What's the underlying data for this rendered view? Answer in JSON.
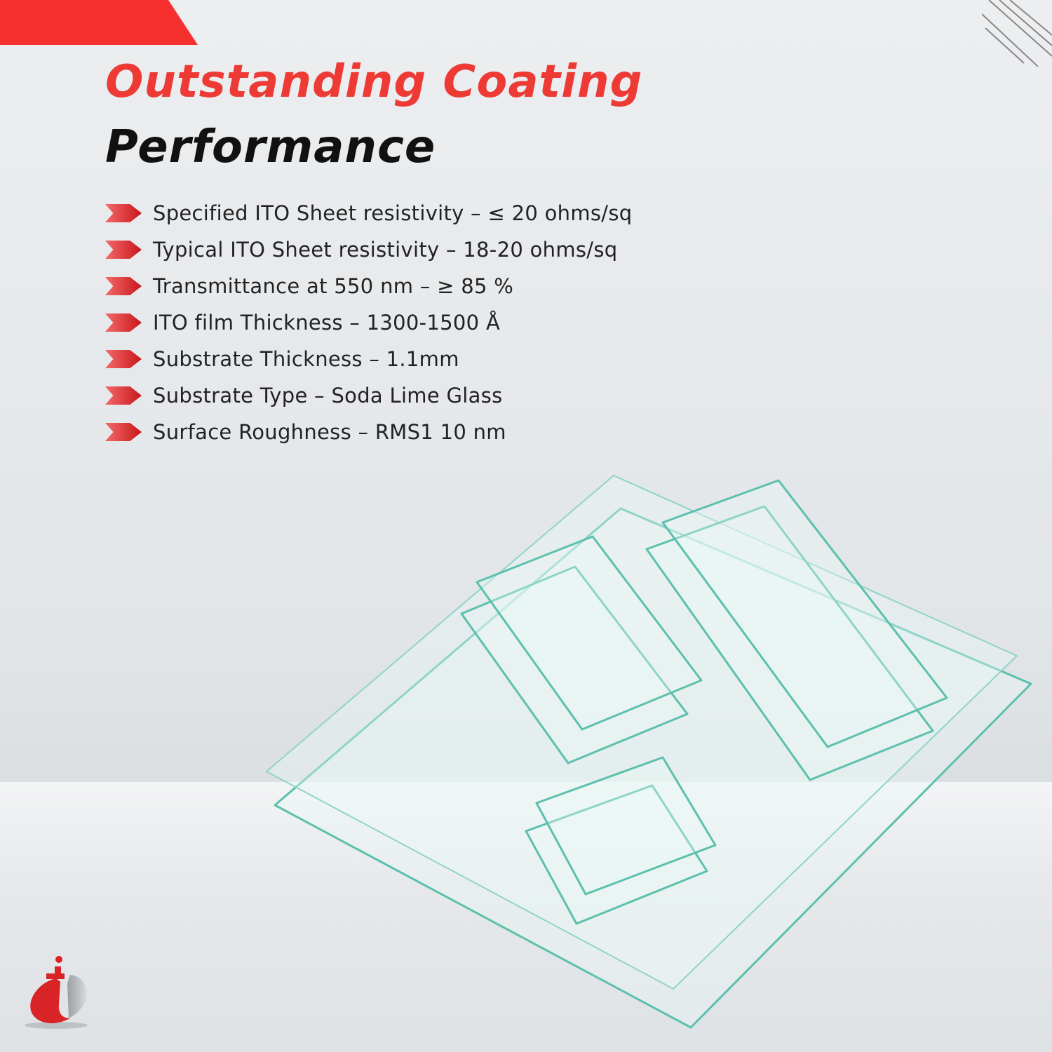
{
  "header": {
    "title_line1": "Outstanding Coating",
    "title_line2": "Performance"
  },
  "colors": {
    "accent": "#ee3a35",
    "glass_edge": "#4fb8a6",
    "text": "#222222"
  },
  "specs": [
    {
      "icon": "chevron-right-icon",
      "text": "Specified ITO Sheet resistivity – ≤ 20 ohms/sq"
    },
    {
      "icon": "chevron-right-icon",
      "text": "Typical ITO Sheet resistivity – 18-20 ohms/sq"
    },
    {
      "icon": "chevron-right-icon",
      "text": "Transmittance at 550 nm – ≥ 85 %"
    },
    {
      "icon": "chevron-right-icon",
      "text": "ITO film Thickness – 1300-1500 Å"
    },
    {
      "icon": "chevron-right-icon",
      "text": "Substrate Thickness – 1.1mm"
    },
    {
      "icon": "chevron-right-icon",
      "text": "Substrate Type – Soda Lime Glass"
    },
    {
      "icon": "chevron-right-icon",
      "text": "Surface Roughness – RMS1 10 nm"
    }
  ],
  "logo": {
    "name": "it-logo"
  }
}
